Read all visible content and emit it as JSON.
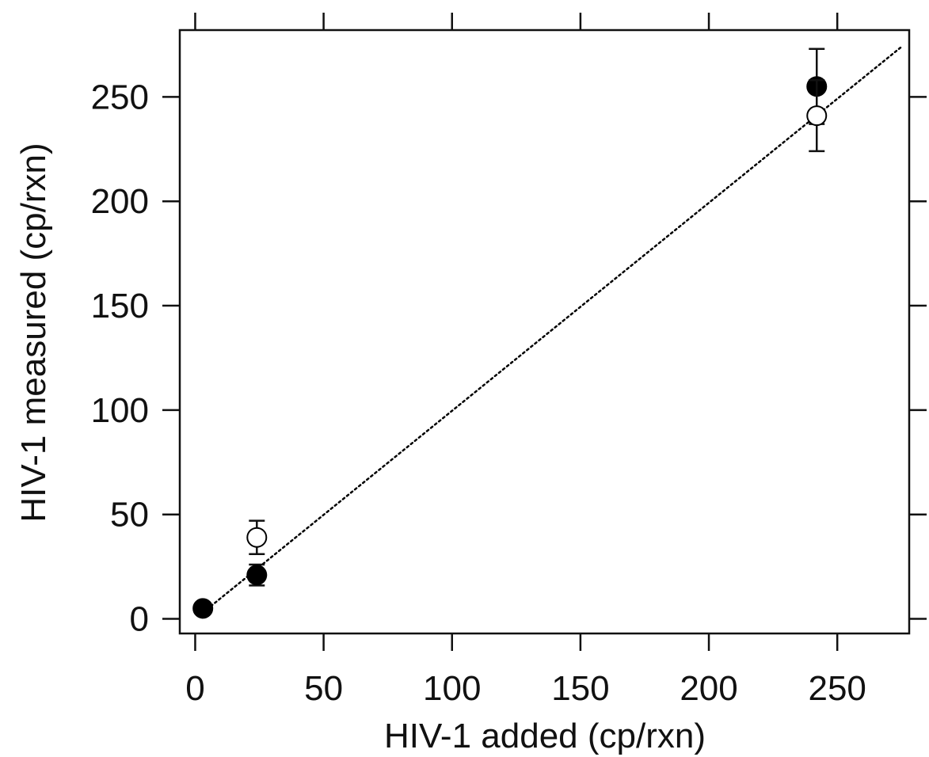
{
  "chart_data": {
    "type": "scatter",
    "title": "",
    "xlabel": "HIV-1 added (cp/rxn)",
    "ylabel": "HIV-1 measured (cp/rxn)",
    "xlim": [
      -6,
      278
    ],
    "ylim": [
      -7,
      282
    ],
    "xticks": [
      0,
      50,
      100,
      150,
      200,
      250
    ],
    "yticks": [
      0,
      50,
      100,
      150,
      200,
      250
    ],
    "xtick_labels": [
      "0",
      "50",
      "100",
      "150",
      "200",
      "250"
    ],
    "ytick_labels": [
      "0",
      "50",
      "100",
      "150",
      "200",
      "250"
    ],
    "mirror_ticks": true,
    "grid": false,
    "series": [
      {
        "marker": "filled-circle",
        "color": "#000000",
        "points": [
          {
            "x": 3,
            "y": 5,
            "err": 2
          },
          {
            "x": 24,
            "y": 21,
            "err": 5
          },
          {
            "x": 242,
            "y": 255,
            "err": 18
          }
        ]
      },
      {
        "marker": "open-circle",
        "color": "#000000",
        "points": [
          {
            "x": 24,
            "y": 39,
            "err": 8
          },
          {
            "x": 242,
            "y": 241,
            "err": 17
          }
        ]
      }
    ],
    "reference_line": {
      "style": "dotted",
      "color": "#000000",
      "from": [
        3,
        3
      ],
      "to": [
        275,
        274
      ]
    }
  }
}
